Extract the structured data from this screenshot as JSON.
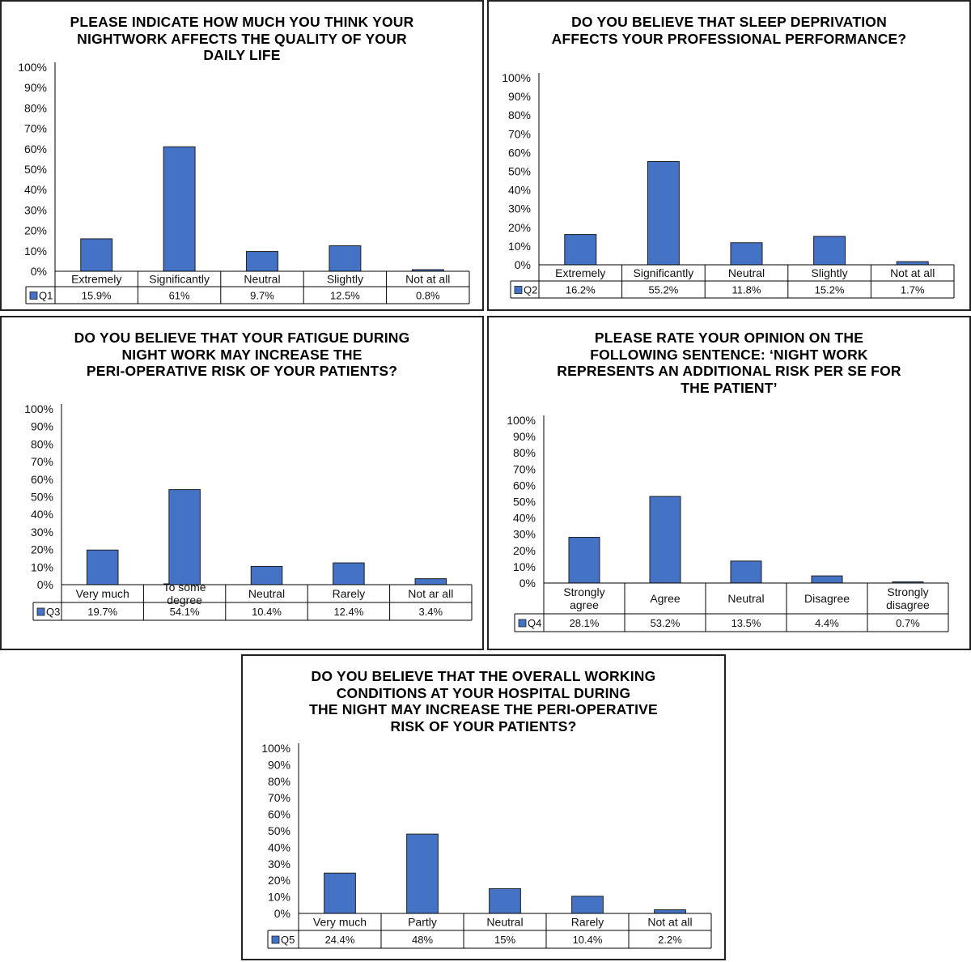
{
  "colors": {
    "bar": "#4472c4",
    "bar_stroke": "#1f1f1f",
    "axis": "#000000"
  },
  "chart_data": [
    {
      "type": "bar",
      "title_lines": [
        "PLEASE INDICATE HOW MUCH YOU THINK YOUR",
        "NIGHTWORK AFFECTS THE QUALITY OF YOUR",
        "DAILY LIFE"
      ],
      "series_name": "Q1",
      "categories": [
        "Extremely",
        "Significantly",
        "Neutral",
        "Slightly",
        "Not at all"
      ],
      "values": [
        15.9,
        61,
        9.7,
        12.5,
        0.8
      ],
      "value_labels": [
        "15.9%",
        "61%",
        "9.7%",
        "12.5%",
        "0.8%"
      ],
      "yticks": [
        "0%",
        "10%",
        "20%",
        "30%",
        "40%",
        "50%",
        "60%",
        "70%",
        "80%",
        "90%",
        "100%"
      ],
      "ylim": [
        0,
        100
      ]
    },
    {
      "type": "bar",
      "title_lines": [
        "DO YOU BELIEVE THAT SLEEP DEPRIVATION",
        "AFFECTS YOUR PROFESSIONAL PERFORMANCE?"
      ],
      "series_name": "Q2",
      "categories": [
        "Extremely",
        "Significantly",
        "Neutral",
        "Slightly",
        "Not at all"
      ],
      "values": [
        16.2,
        55.2,
        11.8,
        15.2,
        1.7
      ],
      "value_labels": [
        "16.2%",
        "55.2%",
        "11.8%",
        "15.2%",
        "1.7%"
      ],
      "yticks": [
        "0%",
        "10%",
        "20%",
        "30%",
        "40%",
        "50%",
        "60%",
        "70%",
        "80%",
        "90%",
        "100%"
      ],
      "ylim": [
        0,
        100
      ]
    },
    {
      "type": "bar",
      "title_lines": [
        "DO YOU BELIEVE THAT  YOUR FATIGUE DURING",
        "NIGHT WORK MAY INCREASE THE",
        "PERI-OPERATIVE RISK OF YOUR PATIENTS?"
      ],
      "series_name": "Q3",
      "categories": [
        "Very much",
        "To some degree",
        "Neutral",
        "Rarely",
        "Not ar all"
      ],
      "values": [
        19.7,
        54.1,
        10.4,
        12.4,
        3.4
      ],
      "value_labels": [
        "19.7%",
        "54.1%",
        "10.4%",
        "12.4%",
        "3.4%"
      ],
      "yticks": [
        "0%",
        "10%",
        "20%",
        "30%",
        "40%",
        "50%",
        "60%",
        "70%",
        "80%",
        "90%",
        "100%"
      ],
      "ylim": [
        0,
        100
      ]
    },
    {
      "type": "bar",
      "title_lines": [
        "PLEASE RATE YOUR OPINION ON THE",
        "FOLLOWING SENTENCE: ‘NIGHT WORK",
        "REPRESENTS AN ADDITIONAL RISK PER SE FOR",
        "THE PATIENT’"
      ],
      "series_name": "Q4",
      "categories": [
        "Strongly agree",
        "Agree",
        "Neutral",
        "Disagree",
        "Strongly disagree"
      ],
      "values": [
        28.1,
        53.2,
        13.5,
        4.4,
        0.7
      ],
      "value_labels": [
        "28.1%",
        "53.2%",
        "13.5%",
        "4.4%",
        "0.7%"
      ],
      "yticks": [
        "0%",
        "10%",
        "20%",
        "30%",
        "40%",
        "50%",
        "60%",
        "70%",
        "80%",
        "90%",
        "100%"
      ],
      "ylim": [
        0,
        100
      ]
    },
    {
      "type": "bar",
      "title_lines": [
        "DO YOU BELIEVE  THAT  THE OVERALL WORKING",
        "CONDITIONS AT YOUR HOSPITAL DURING",
        "THE NIGHT MAY INCREASE THE PERI-OPERATIVE",
        "RISK OF YOUR PATIENTS?"
      ],
      "series_name": "Q5",
      "categories": [
        "Very much",
        "Partly",
        "Neutral",
        "Rarely",
        "Not at all"
      ],
      "values": [
        24.4,
        48,
        15,
        10.4,
        2.2
      ],
      "value_labels": [
        "24.4%",
        "48%",
        "15%",
        "10.4%",
        "2.2%"
      ],
      "yticks": [
        "0%",
        "10%",
        "20%",
        "30%",
        "40%",
        "50%",
        "60%",
        "70%",
        "80%",
        "90%",
        "100%"
      ],
      "ylim": [
        0,
        100
      ]
    }
  ]
}
